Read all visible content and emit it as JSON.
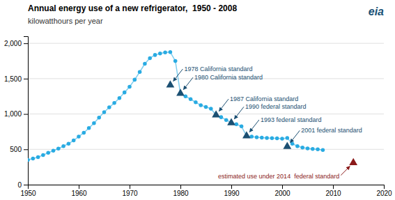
{
  "chart_data": {
    "type": "line",
    "title": "Annual energy use of a new refrigerator,  1950 - 2008",
    "ylabel": "kilowatthours per year",
    "x": [
      1950,
      1951,
      1952,
      1953,
      1954,
      1955,
      1956,
      1957,
      1958,
      1959,
      1960,
      1961,
      1962,
      1963,
      1964,
      1965,
      1966,
      1967,
      1968,
      1969,
      1970,
      1971,
      1972,
      1973,
      1974,
      1975,
      1976,
      1977,
      1978,
      1979,
      1980,
      1981,
      1982,
      1983,
      1984,
      1985,
      1986,
      1987,
      1988,
      1989,
      1990,
      1991,
      1992,
      1993,
      1994,
      1995,
      1996,
      1997,
      1998,
      1999,
      2000,
      2001,
      2002,
      2003,
      2004,
      2005,
      2006,
      2007,
      2008
    ],
    "values": [
      350,
      370,
      390,
      420,
      450,
      480,
      510,
      545,
      580,
      625,
      680,
      735,
      800,
      870,
      950,
      1025,
      1095,
      1155,
      1225,
      1305,
      1385,
      1485,
      1595,
      1710,
      1790,
      1835,
      1855,
      1870,
      1875,
      1750,
      1290,
      1250,
      1210,
      1165,
      1125,
      1100,
      1075,
      985,
      955,
      915,
      875,
      855,
      825,
      690,
      680,
      670,
      665,
      660,
      658,
      655,
      650,
      660,
      580,
      545,
      525,
      512,
      505,
      500,
      490
    ],
    "color": "#29ABE2",
    "marker": "circle",
    "xlim": [
      1950,
      2020
    ],
    "ylim": [
      0,
      2100
    ],
    "xticks": [
      1950,
      1960,
      1970,
      1980,
      1990,
      2000,
      2010,
      2020
    ],
    "yticks": [
      0,
      500,
      {
        "value": 1000,
        "label": "1,000"
      },
      {
        "value": 1500,
        "label": "1,500"
      },
      {
        "value": 2000,
        "label": "2,000"
      }
    ],
    "grid": true,
    "annotations": [
      {
        "text": "1978 California standard",
        "x": 1978,
        "y": 1410,
        "color": "#1B4F72",
        "marker": "triangle"
      },
      {
        "text": "1980 California standard",
        "x": 1980,
        "y": 1290,
        "color": "#1B4F72",
        "marker": "triangle"
      },
      {
        "text": "1987 California standard",
        "x": 1987,
        "y": 985,
        "color": "#1B4F72",
        "marker": "triangle"
      },
      {
        "text": "1990 federal standard",
        "x": 1990,
        "y": 875,
        "color": "#1B4F72",
        "marker": "triangle"
      },
      {
        "text": "1993 federal standard",
        "x": 1993,
        "y": 690,
        "color": "#1B4F72",
        "marker": "triangle"
      },
      {
        "text": "2001 federal standard",
        "x": 2001,
        "y": 540,
        "color": "#1B4F72",
        "marker": "triangle"
      },
      {
        "text": "estimated use under 2014  federal standard",
        "x": 2014,
        "y": 310,
        "color": "#8B1A1A",
        "marker": "triangle"
      },
      {
        "text": "eia"
      }
    ]
  }
}
